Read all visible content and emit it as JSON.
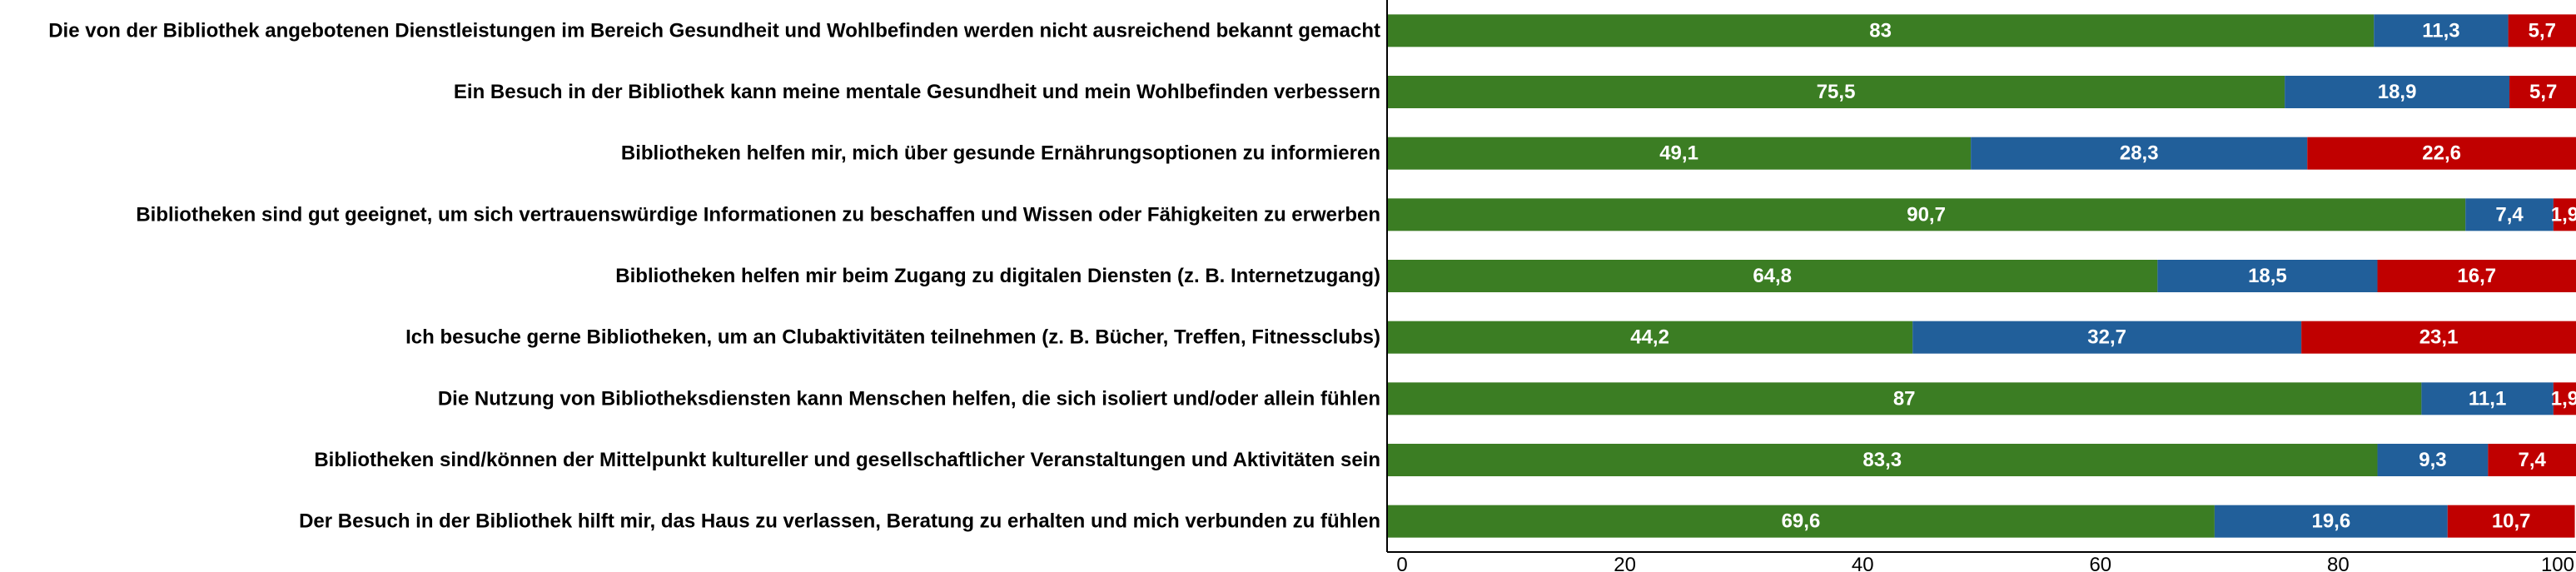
{
  "chart_data": {
    "type": "bar",
    "orientation": "horizontal",
    "stacked": true,
    "title": "",
    "xlabel": "",
    "ylabel": "",
    "xlim": [
      0,
      100
    ],
    "x_ticks": [
      "0",
      "20",
      "40",
      "60",
      "80",
      "100"
    ],
    "grid": false,
    "legend": "none",
    "categories": [
      "Die von der Bibliothek angebotenen Dienstleistungen im Bereich Gesundheit und Wohlbefinden werden nicht ausreichend bekannt gemacht",
      "Ein Besuch in der Bibliothek kann meine mentale Gesundheit und mein Wohlbefinden verbessern",
      "Bibliotheken helfen mir, mich über gesunde Ernährungsoptionen zu informieren",
      "Bibliotheken sind gut geeignet, um sich vertrauenswürdige Informationen zu beschaffen und Wissen oder Fähigkeiten zu erwerben",
      "Bibliotheken helfen mir beim Zugang zu digitalen Diensten (z. B. Internetzugang)",
      "Ich besuche gerne Bibliotheken, um an Clubaktivitäten teilnehmen (z. B. Bücher, Treffen, Fitnessclubs)",
      "Die Nutzung von Bibliotheksdiensten kann Menschen helfen, die sich isoliert und/oder allein fühlen",
      "Bibliotheken sind/können der Mittelpunkt kultureller und gesellschaftlicher Veranstaltungen und Aktivitäten sein",
      "Der Besuch in der Bibliothek hilft mir, das Haus zu verlassen, Beratung zu erhalten und mich verbunden zu fühlen"
    ],
    "series": [
      {
        "color": "#3b7d23",
        "values": [
          83,
          75.5,
          49.1,
          90.7,
          64.8,
          44.2,
          87,
          83.3,
          69.6
        ],
        "labels": [
          "83",
          "75,5",
          "49,1",
          "90,7",
          "64,8",
          "44,2",
          "87",
          "83,3",
          "69,6"
        ]
      },
      {
        "color": "#215f9a",
        "values": [
          11.3,
          18.9,
          28.3,
          7.4,
          18.5,
          32.7,
          11.1,
          9.3,
          19.6
        ],
        "labels": [
          "11,3",
          "18,9",
          "28,3",
          "7,4",
          "18,5",
          "32,7",
          "11,1",
          "9,3",
          "19,6"
        ]
      },
      {
        "color": "#c00000",
        "values": [
          5.7,
          5.7,
          22.6,
          1.9,
          16.7,
          23.1,
          1.9,
          7.4,
          10.7
        ],
        "labels": [
          "5,7",
          "5,7",
          "22,6",
          "1,9",
          "16,7",
          "23,1",
          "1,9",
          "7,4",
          "10,7"
        ]
      }
    ]
  }
}
